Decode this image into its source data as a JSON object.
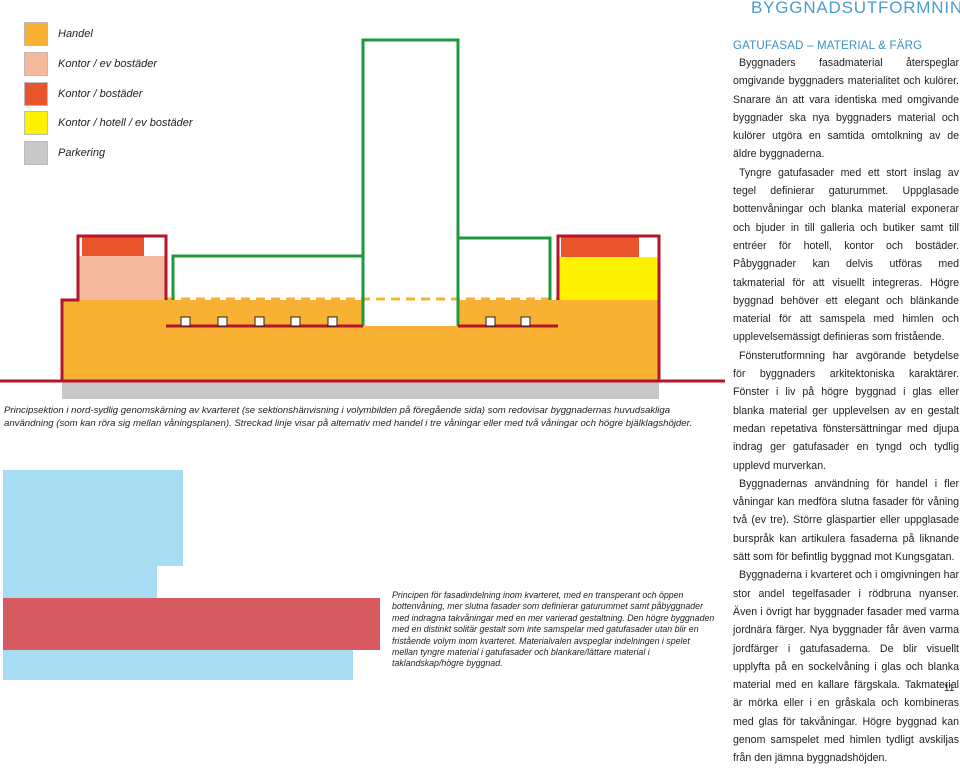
{
  "legend": [
    {
      "label": "Handel",
      "color": "#f8b133"
    },
    {
      "label": "Kontor / ev bostäder",
      "color": "#f4b89c"
    },
    {
      "label": "Kontor / bostäder",
      "color": "#e8552a"
    },
    {
      "label": "Kontor / hotell / ev bostäder",
      "color": "#fff200"
    },
    {
      "label": "Parkering",
      "color": "#c8c8c8"
    }
  ],
  "captions": {
    "section": "Principsektion i nord-sydlig genomskärning av kvarteret (se sektionshänvisning i volymbilden på föregående sida) som redovisar byggnadernas huvudsakliga användning (som kan röra sig mellan våningsplanen). Streckad linje visar på alternativ med handel i tre våningar eller med två våningar och högre bjälklagshöjder.",
    "facade": "Principen för fasadindelning inom kvarteret, med en transperant och öppen bottenvåning, mer slutna fasader som definierar gaturummet samt påbyggnader med indragna takvåningar med en mer varierad gestaltning. Den högre byggnaden med en distinkt solitär gestalt som inte samspelar med gatufasader utan blir en fristående volym inom kvarteret. Materialvalen avspeglar indelningen i spelet mellan tyngre material i gatufasader och blankare/lättare material i taklandskap/högre byggnad."
  },
  "section_title": "BYGGNADSUTFORMNING",
  "sub_heading": "GATUFASAD – MATERIAL & FÄRG",
  "paragraphs": [
    "Byggnaders fasadmaterial återspeglar omgivande byggnaders materialitet och kulörer. Snarare än att vara identiska med omgivande byggnader ska nya byggnaders material och kulörer utgöra en samtida omtolkning av de äldre byggnaderna.",
    "Tyngre gatufasader med ett stort inslag av tegel definierar gaturummet. Uppglasade bottenvåningar och blanka material exponerar och bjuder in till galleria och butiker samt till entréer för hotell, kontor och bostäder. Påbyggnader kan delvis utföras med takmaterial för att visuellt integreras. Högre byggnad behöver ett elegant och blänkande material för att samspela med himlen och upplevelsemässigt definieras som fristående.",
    "Fönsterutformning har avgörande betydelse för byggnaders arkitektoniska karaktärer. Fönster i liv på högre byggnad i glas eller blanka material ger upplevelsen av en gestalt medan repetativa fönstersättningar med djupa indrag ger gatufasader en tyngd och tydlig upplevd murverkan.",
    "Byggnadernas användning för handel i fler våningar kan medföra slutna fasader för våning två (ev tre). Större glaspartier eller uppglasade burspråk kan artikulera fasaderna på liknande sätt som för befintlig byggnad mot Kungsgatan.",
    "Byggnaderna i kvarteret och i omgivningen har stor andel tegelfasader i rödbruna nyanser. Även i övrigt har byggnader fasader med varma jordnära färger. Nya byggnader får även varma jordfärger i gatufasaderna. De blir visuellt upplyfta på en sockelvåning i glas och blanka material med en kallare färgskala. Takmaterial är mörka eller i en gråskala och kombineras med glas för takvåningar. Högre byggnad kan genom samspelet med himlen tydligt avskiljas från den jämna byggnadshöjden."
  ],
  "page_number": "11",
  "colors": {
    "handel": "#f8b133",
    "kontor_ev_bostader": "#f4b89c",
    "kontor_bostader": "#e8552a",
    "kontor_hotell": "#fff200",
    "parkering": "#c8c8c8",
    "outline_red": "#b5142a",
    "outline_green": "#1e9a3c",
    "glass_blue": "#a8dcf2",
    "brick_red": "#d65a5f",
    "accent_blue": "#4a9cd0"
  }
}
